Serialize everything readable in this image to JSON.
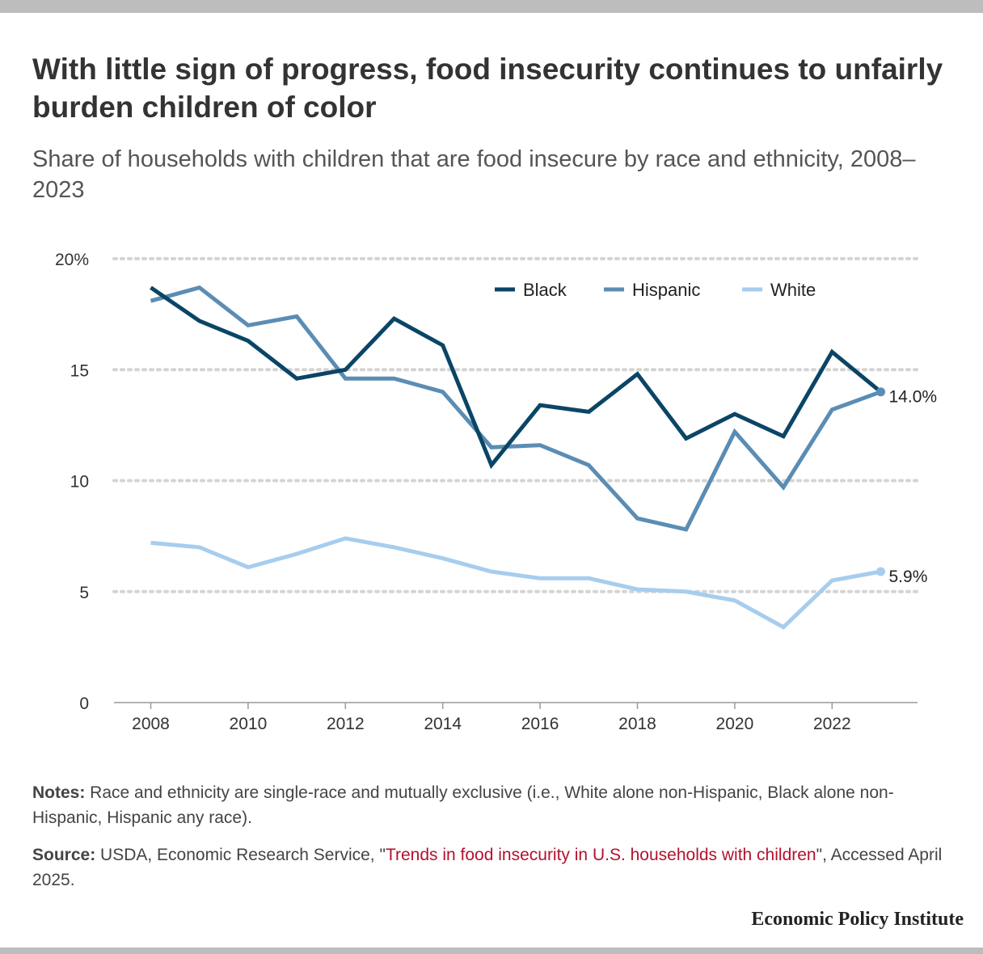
{
  "title": "With little sign of progress, food insecurity continues to unfairly burden children of color",
  "subtitle": "Share of households with children that are food insecure by race and ethnicity, 2008–2023",
  "notes": {
    "label": "Notes:",
    "text": " Race and ethnicity are single-race and mutually exclusive (i.e., White alone non-Hispanic, Black alone non-Hispanic, Hispanic any race)."
  },
  "source": {
    "label": "Source:",
    "text_before": " USDA, Economic Research Service, \"",
    "link_text": "Trends in food insecurity in U.S. households with children",
    "text_after": "\", Accessed April 2025."
  },
  "brand": "Economic Policy Institute",
  "colors": {
    "black_series": "#0b4566",
    "hispanic_series": "#5b8db4",
    "white_series": "#a7cdee",
    "grid": "#d4d4d4",
    "link": "#b3122c"
  },
  "chart_data": {
    "type": "line",
    "x": [
      2008,
      2009,
      2010,
      2011,
      2012,
      2013,
      2014,
      2015,
      2016,
      2017,
      2018,
      2019,
      2020,
      2021,
      2022,
      2023
    ],
    "x_ticks": [
      "2008",
      "2010",
      "2012",
      "2014",
      "2016",
      "2018",
      "2020",
      "2022"
    ],
    "y_ticks": [
      "0",
      "5",
      "10",
      "15",
      "20%"
    ],
    "ylim": [
      0,
      20
    ],
    "xlim": [
      2007.55,
      2023.75
    ],
    "grid": true,
    "legend_position": "top-right",
    "series": [
      {
        "name": "Black",
        "color": "#0b4566",
        "values": [
          18.7,
          17.2,
          16.3,
          14.6,
          15.0,
          17.3,
          16.1,
          10.7,
          13.4,
          13.1,
          14.8,
          11.9,
          13.0,
          12.0,
          15.8,
          14.0
        ]
      },
      {
        "name": "Hispanic",
        "color": "#5b8db4",
        "values": [
          18.1,
          18.7,
          17.0,
          17.4,
          14.6,
          14.6,
          14.0,
          11.5,
          11.6,
          10.7,
          8.3,
          7.8,
          12.2,
          9.7,
          13.2,
          14.0
        ],
        "end_label": "14.0%"
      },
      {
        "name": "White",
        "color": "#a7cdee",
        "values": [
          7.2,
          7.0,
          6.1,
          6.7,
          7.4,
          7.0,
          6.5,
          5.9,
          5.6,
          5.6,
          5.1,
          5.0,
          4.6,
          3.4,
          5.5,
          5.9
        ],
        "end_label": "5.9%"
      }
    ]
  }
}
